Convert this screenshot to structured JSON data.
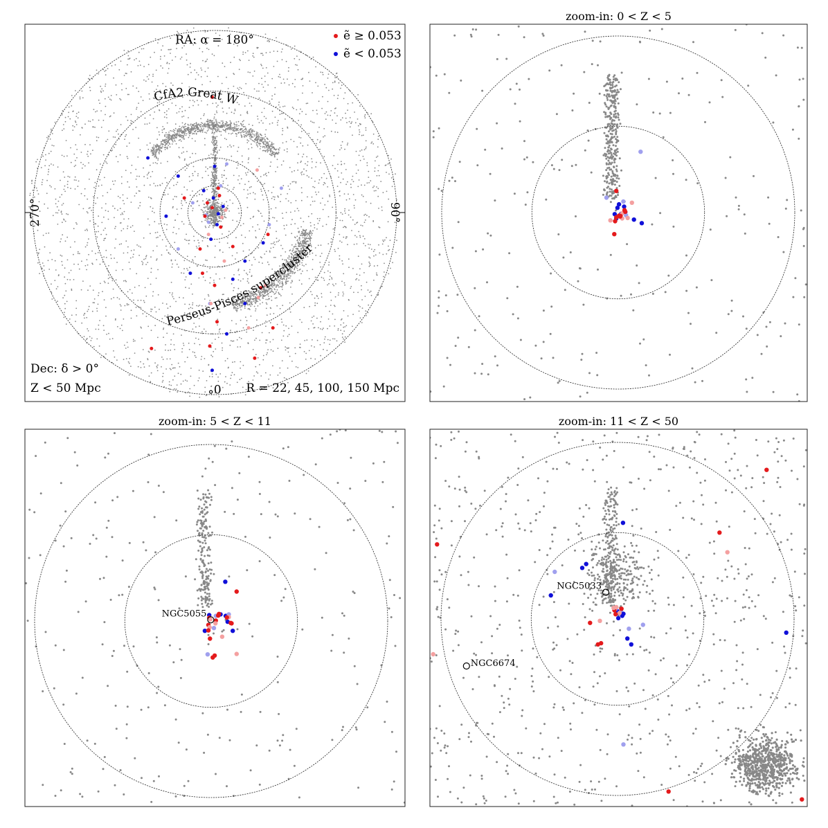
{
  "colors": {
    "background_points": "#888888",
    "high_e": "#e41a1c",
    "low_e": "#1010d8",
    "high_e_light": "#f4a0a0",
    "low_e_light": "#a0a0ee",
    "frame": "#222222",
    "ring": "#222222"
  },
  "chart_data": [
    {
      "type": "scatter",
      "panel": "full-sky",
      "title": "",
      "projection": "polar",
      "top_label": "RA: α = 180°",
      "left_label": "270°",
      "right_label": "90°",
      "bottom_label": "0°",
      "ring_radii_mpc": [
        22,
        45,
        100,
        150
      ],
      "radius_max_mpc": 150,
      "legend": {
        "placement": "top-right",
        "entries": [
          {
            "label": "ẽ ≥ 0.053",
            "color": "#e41a1c"
          },
          {
            "label": "ẽ < 0.053",
            "color": "#1010d8"
          }
        ]
      },
      "annotations": {
        "wall": "CfA2 Great Wall",
        "supercluster": "Perseus-Pisces supercluster",
        "dec": "Dec: δ > 0°",
        "z": "Z < 50 Mpc",
        "radii": "R = 22, 45, 100, 150 Mpc"
      },
      "highlighted_points": {
        "high_e": [
          [
            0,
            -60
          ],
          [
            -3,
            -75
          ],
          [
            2,
            -90
          ],
          [
            -4,
            -110
          ],
          [
            28,
            -95
          ],
          [
            -52,
            -112
          ],
          [
            33,
            -120
          ],
          [
            42,
            -60
          ],
          [
            48,
            -95
          ],
          [
            -10,
            -50
          ],
          [
            8,
            -40
          ],
          [
            15,
            -28
          ],
          [
            -12,
            -30
          ],
          [
            -5,
            -18
          ],
          [
            5,
            -12
          ],
          [
            -2,
            4
          ],
          [
            6,
            -4
          ],
          [
            -6,
            8
          ],
          [
            4,
            14
          ],
          [
            9,
            2
          ],
          [
            -8,
            -3
          ],
          [
            3,
            20
          ],
          [
            35,
            35
          ],
          [
            -25,
            12
          ],
          [
            38,
            -62
          ],
          [
            36,
            -70
          ],
          [
            -2,
            95
          ],
          [
            44,
            -18
          ]
        ],
        "low_e": [
          [
            10,
            -100
          ],
          [
            -4,
            -75
          ],
          [
            -20,
            -50
          ],
          [
            15,
            -55
          ],
          [
            -30,
            -30
          ],
          [
            25,
            -40
          ],
          [
            -40,
            -3
          ],
          [
            45,
            -10
          ],
          [
            -3,
            -22
          ],
          [
            2,
            -10
          ],
          [
            -7,
            -2
          ],
          [
            7,
            5
          ],
          [
            -1,
            12
          ],
          [
            5,
            22
          ],
          [
            -9,
            18
          ],
          [
            3,
            -1
          ],
          [
            -5,
            -8
          ],
          [
            0,
            38
          ],
          [
            -30,
            30
          ],
          [
            10,
            40
          ],
          [
            -2,
            -130
          ],
          [
            25,
            -75
          ],
          [
            55,
            20
          ],
          [
            -55,
            45
          ],
          [
            40,
            -25
          ],
          [
            -18,
            8
          ]
        ]
      }
    },
    {
      "type": "scatter",
      "panel": "zoom-1",
      "title": "zoom-in: 0 < Z < 5",
      "ring_radii_mpc": [
        22,
        45
      ],
      "radius_max_mpc": 48,
      "highlighted_points": {
        "high_e": [
          [
            -1,
            -5.5
          ],
          [
            -2,
            -2
          ],
          [
            -0.5,
            -1.2
          ],
          [
            0.2,
            -0.8
          ],
          [
            1.0,
            -0.2
          ],
          [
            1.6,
            0.6
          ],
          [
            1.8,
            0.2
          ],
          [
            2.4,
            -1.4
          ],
          [
            -0.8,
            -2.2
          ],
          [
            0.6,
            -0.9
          ],
          [
            1.0,
            -1.5
          ],
          [
            -0.5,
            5.5
          ],
          [
            0.5,
            -1.0
          ],
          [
            3.5,
            2.5
          ]
        ],
        "low_e": [
          [
            -0.5,
            -1.5
          ],
          [
            0.1,
            -1.0
          ],
          [
            -0.9,
            -0.4
          ],
          [
            1.8,
            0.1
          ],
          [
            2.0,
            -0.7
          ],
          [
            1.5,
            1.5
          ],
          [
            0.2,
            2.1
          ],
          [
            -3.0,
            3.8
          ],
          [
            4.0,
            -1.8
          ],
          [
            6.0,
            -2.7
          ],
          [
            1.3,
            2.8
          ],
          [
            -0.2,
            1.2
          ],
          [
            0.8,
            -0.3
          ],
          [
            5.7,
            15.5
          ]
        ]
      }
    },
    {
      "type": "scatter",
      "panel": "zoom-2",
      "title": "zoom-in: 5 < Z < 11",
      "ring_radii_mpc": [
        22,
        45
      ],
      "radius_max_mpc": 48,
      "labelled_galaxies": [
        {
          "name": "NGC5055",
          "x": -0.1,
          "y": 0.3
        }
      ],
      "highlighted_points": {
        "high_e": [
          [
            -0.5,
            0.8
          ],
          [
            -0.2,
            0.4
          ],
          [
            1.2,
            0.1
          ],
          [
            1.8,
            1.4
          ],
          [
            4.5,
            1.0
          ],
          [
            5.0,
            -0.5
          ],
          [
            -0.7,
            -1.0
          ],
          [
            -0.4,
            -1.6
          ],
          [
            -0.3,
            -4.5
          ],
          [
            0.9,
            -8.8
          ],
          [
            6.5,
            -8.4
          ],
          [
            5.2,
            -0.6
          ],
          [
            4.0,
            0.9
          ],
          [
            1.1,
            -0.6
          ],
          [
            -0.7,
            -2.4
          ],
          [
            0.4,
            -9.3
          ],
          [
            2.8,
            -4.0
          ],
          [
            6.5,
            7.5
          ],
          [
            2.0,
            1.8
          ]
        ],
        "low_e": [
          [
            -0.5,
            1.5
          ],
          [
            1.2,
            1.3
          ],
          [
            2.4,
            1.7
          ],
          [
            3.7,
            1.3
          ],
          [
            0.7,
            -1.8
          ],
          [
            4.2,
            -0.2
          ],
          [
            5.5,
            -2.5
          ],
          [
            -0.9,
            -8.5
          ],
          [
            3.6,
            10.0
          ],
          [
            -1.6,
            -2.5
          ],
          [
            4.5,
            1.7
          ]
        ]
      }
    },
    {
      "type": "scatter",
      "panel": "zoom-3",
      "title": "zoom-in: 11 < Z < 50",
      "ring_radii_mpc": [
        22,
        45
      ],
      "radius_max_mpc": 48,
      "labelled_galaxies": [
        {
          "name": "NGC5033",
          "x": -3.0,
          "y": 6.8
        },
        {
          "name": "NGC6674",
          "x": -38.5,
          "y": -12.0
        }
      ],
      "highlighted_points": {
        "high_e": [
          [
            -7,
            -1
          ],
          [
            -4.5,
            -0.5
          ],
          [
            -5,
            -6.5
          ],
          [
            -4.2,
            -6.2
          ],
          [
            0.5,
            1.5
          ],
          [
            -0.5,
            1.2
          ],
          [
            -0.8,
            2.2
          ],
          [
            -0.3,
            3.0
          ],
          [
            1.0,
            2.6
          ],
          [
            13,
            -44
          ],
          [
            28,
            17
          ],
          [
            26,
            22
          ],
          [
            47,
            -46
          ],
          [
            -47,
            -9
          ],
          [
            38,
            38
          ],
          [
            -46,
            19
          ],
          [
            -1.0,
            2.8
          ]
        ],
        "low_e": [
          [
            0.2,
            1.5
          ],
          [
            0.9,
            2.2
          ],
          [
            1.5,
            1.3
          ],
          [
            -0.1,
            2.0
          ],
          [
            -0.5,
            2.5
          ],
          [
            1.2,
            0.8
          ],
          [
            0.2,
            0.2
          ],
          [
            2.9,
            -2.5
          ],
          [
            2.5,
            -5.0
          ],
          [
            3.5,
            -6.5
          ],
          [
            6.5,
            -1.5
          ],
          [
            -9,
            13
          ],
          [
            -8,
            14
          ],
          [
            -16,
            12
          ],
          [
            -17,
            6
          ],
          [
            43,
            -3.5
          ],
          [
            1.5,
            -32
          ],
          [
            1.4,
            24.5
          ]
        ]
      }
    }
  ]
}
